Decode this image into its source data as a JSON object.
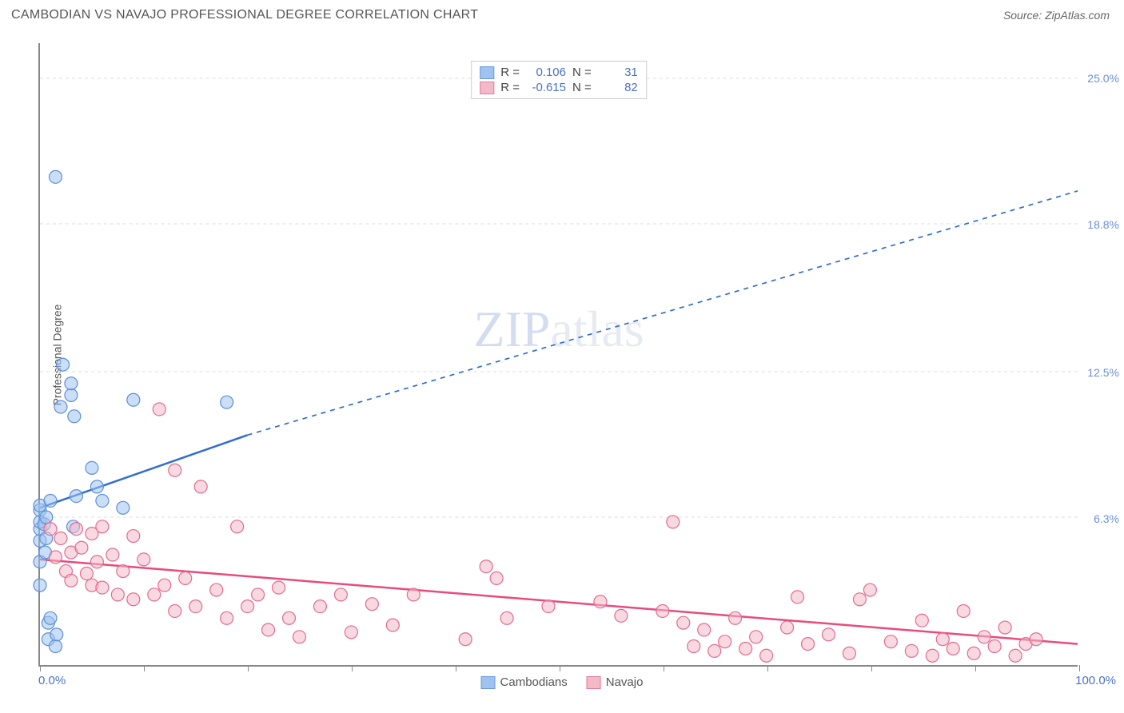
{
  "header": {
    "title": "CAMBODIAN VS NAVAJO PROFESSIONAL DEGREE CORRELATION CHART",
    "source": "Source: ZipAtlas.com"
  },
  "watermark": {
    "bold": "ZIP",
    "rest": "atlas"
  },
  "chart": {
    "type": "scatter",
    "y_axis_title": "Professional Degree",
    "xlim": [
      0,
      100
    ],
    "ylim": [
      0,
      26.5
    ],
    "x_labels": {
      "min": "0.0%",
      "max": "100.0%"
    },
    "y_ticks": [
      {
        "v": 6.3,
        "label": "6.3%"
      },
      {
        "v": 12.5,
        "label": "12.5%"
      },
      {
        "v": 18.8,
        "label": "18.8%"
      },
      {
        "v": 25.0,
        "label": "25.0%"
      }
    ],
    "x_tick_vals": [
      0,
      10,
      20,
      30,
      40,
      50,
      60,
      70,
      80,
      90,
      100
    ],
    "background_color": "#ffffff",
    "grid_color": "#dddddd",
    "axis_color": "#888888",
    "marker_radius": 8,
    "marker_opacity": 0.55,
    "series": [
      {
        "name": "Cambodians",
        "color_fill": "#9ec3f0",
        "color_stroke": "#5d8fd6",
        "legend_swatch_border": "#6b99d8",
        "r_label": "R =",
        "r_value": "0.106",
        "n_label": "N =",
        "n_value": "31",
        "trend": {
          "solid_from": [
            0,
            6.7
          ],
          "solid_to": [
            20,
            9.8
          ],
          "dash_from": [
            20,
            9.8
          ],
          "dash_to": [
            100,
            20.2
          ],
          "color": "#2f6cd0",
          "width": 2.5
        },
        "points": [
          [
            0,
            3.4
          ],
          [
            0,
            4.4
          ],
          [
            0,
            5.3
          ],
          [
            0,
            5.8
          ],
          [
            0,
            6.1
          ],
          [
            0,
            6.6
          ],
          [
            0,
            6.8
          ],
          [
            0.4,
            6.0
          ],
          [
            0.6,
            5.4
          ],
          [
            0.6,
            6.3
          ],
          [
            0.8,
            1.1
          ],
          [
            0.8,
            1.8
          ],
          [
            1.0,
            2.0
          ],
          [
            1.0,
            7.0
          ],
          [
            1.5,
            0.8
          ],
          [
            1.6,
            1.3
          ],
          [
            2,
            11.0
          ],
          [
            2.2,
            12.8
          ],
          [
            3,
            11.5
          ],
          [
            3,
            12.0
          ],
          [
            3.3,
            10.6
          ],
          [
            3.5,
            7.2
          ],
          [
            5,
            8.4
          ],
          [
            5.5,
            7.6
          ],
          [
            6,
            7.0
          ],
          [
            8,
            6.7
          ],
          [
            9,
            11.3
          ],
          [
            1.5,
            20.8
          ],
          [
            18,
            11.2
          ],
          [
            3.2,
            5.9
          ],
          [
            0.5,
            4.8
          ]
        ]
      },
      {
        "name": "Navajo",
        "color_fill": "#f4b9c8",
        "color_stroke": "#e36a8f",
        "legend_swatch_border": "#e57a9a",
        "r_label": "R =",
        "r_value": "-0.615",
        "n_label": "N =",
        "n_value": "82",
        "trend": {
          "solid_from": [
            0,
            4.5
          ],
          "solid_to": [
            100,
            0.9
          ],
          "dash_from": null,
          "dash_to": null,
          "color": "#e94b7b",
          "width": 2.5
        },
        "points": [
          [
            1,
            5.8
          ],
          [
            1.5,
            4.6
          ],
          [
            2,
            5.4
          ],
          [
            2.5,
            4.0
          ],
          [
            3,
            4.8
          ],
          [
            3,
            3.6
          ],
          [
            3.5,
            5.8
          ],
          [
            4,
            5.0
          ],
          [
            4.5,
            3.9
          ],
          [
            5,
            5.6
          ],
          [
            5,
            3.4
          ],
          [
            5.5,
            4.4
          ],
          [
            6,
            5.9
          ],
          [
            6,
            3.3
          ],
          [
            7,
            4.7
          ],
          [
            7.5,
            3.0
          ],
          [
            8,
            4.0
          ],
          [
            9,
            5.5
          ],
          [
            9,
            2.8
          ],
          [
            10,
            4.5
          ],
          [
            11,
            3.0
          ],
          [
            11.5,
            10.9
          ],
          [
            12,
            3.4
          ],
          [
            13,
            2.3
          ],
          [
            13,
            8.3
          ],
          [
            14,
            3.7
          ],
          [
            15,
            2.5
          ],
          [
            15.5,
            7.6
          ],
          [
            17,
            3.2
          ],
          [
            18,
            2.0
          ],
          [
            19,
            5.9
          ],
          [
            20,
            2.5
          ],
          [
            21,
            3.0
          ],
          [
            22,
            1.5
          ],
          [
            23,
            3.3
          ],
          [
            24,
            2.0
          ],
          [
            25,
            1.2
          ],
          [
            27,
            2.5
          ],
          [
            29,
            3.0
          ],
          [
            30,
            1.4
          ],
          [
            32,
            2.6
          ],
          [
            34,
            1.7
          ],
          [
            36,
            3.0
          ],
          [
            41,
            1.1
          ],
          [
            43,
            4.2
          ],
          [
            44,
            3.7
          ],
          [
            45,
            2.0
          ],
          [
            49,
            2.5
          ],
          [
            54,
            2.7
          ],
          [
            56,
            2.1
          ],
          [
            60,
            2.3
          ],
          [
            61,
            6.1
          ],
          [
            62,
            1.8
          ],
          [
            63,
            0.8
          ],
          [
            64,
            1.5
          ],
          [
            65,
            0.6
          ],
          [
            66,
            1.0
          ],
          [
            67,
            2.0
          ],
          [
            68,
            0.7
          ],
          [
            69,
            1.2
          ],
          [
            70,
            0.4
          ],
          [
            72,
            1.6
          ],
          [
            73,
            2.9
          ],
          [
            74,
            0.9
          ],
          [
            76,
            1.3
          ],
          [
            78,
            0.5
          ],
          [
            79,
            2.8
          ],
          [
            80,
            3.2
          ],
          [
            82,
            1.0
          ],
          [
            84,
            0.6
          ],
          [
            85,
            1.9
          ],
          [
            86,
            0.4
          ],
          [
            87,
            1.1
          ],
          [
            88,
            0.7
          ],
          [
            89,
            2.3
          ],
          [
            90,
            0.5
          ],
          [
            91,
            1.2
          ],
          [
            92,
            0.8
          ],
          [
            93,
            1.6
          ],
          [
            94,
            0.4
          ],
          [
            95,
            0.9
          ],
          [
            96,
            1.1
          ]
        ]
      }
    ],
    "legend_bottom": [
      {
        "label": "Cambodians",
        "fill": "#9ec3f0",
        "border": "#6b99d8"
      },
      {
        "label": "Navajo",
        "fill": "#f4b9c8",
        "border": "#e57a9a"
      }
    ]
  }
}
